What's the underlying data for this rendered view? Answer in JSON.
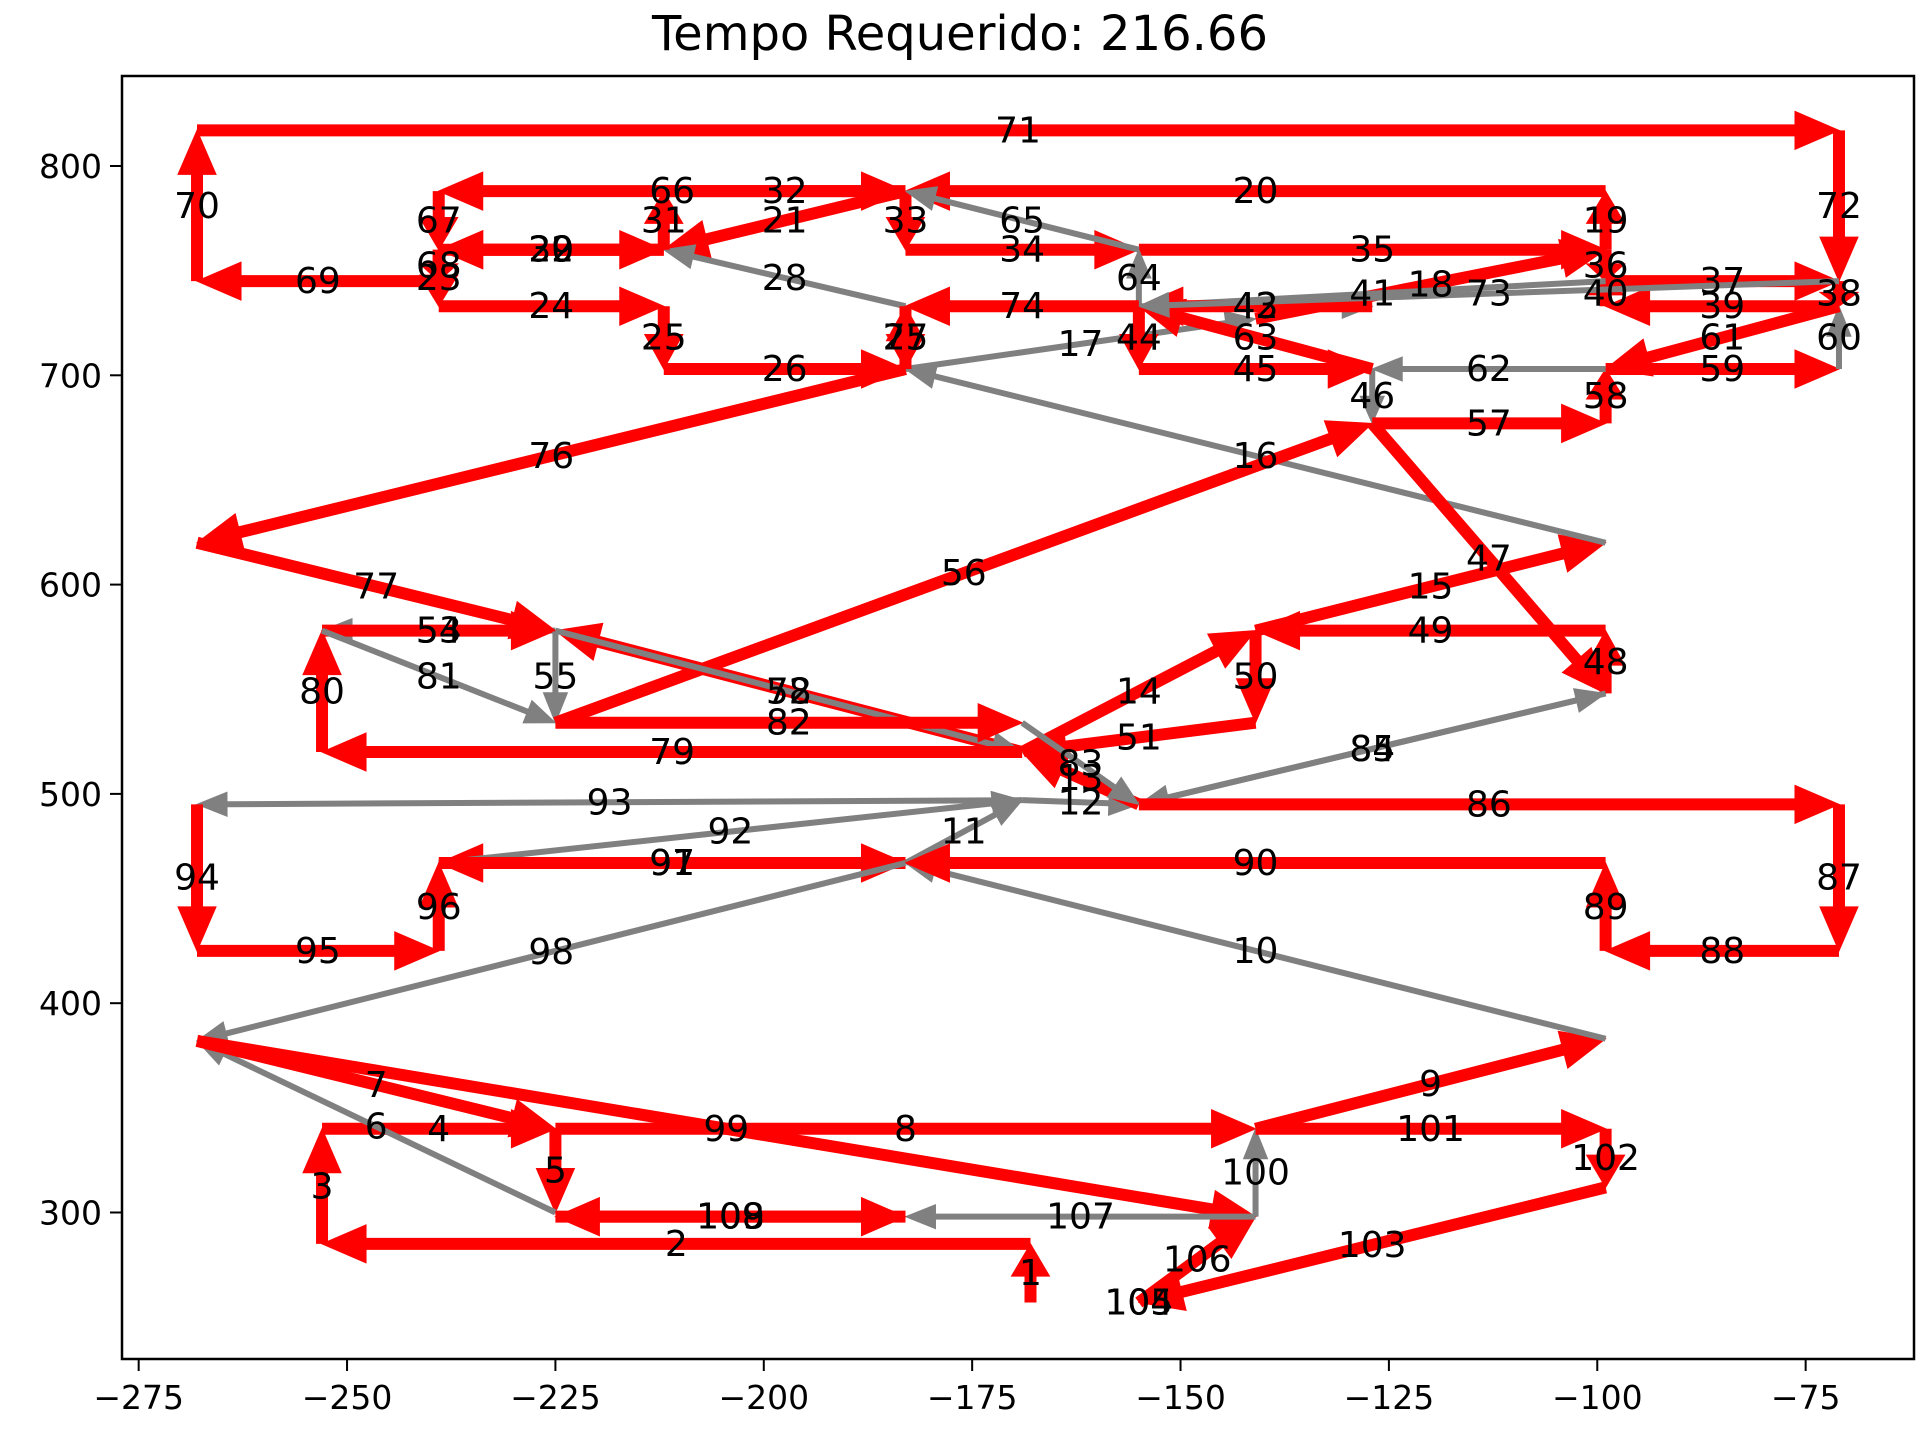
{
  "chart_data": {
    "type": "line",
    "title": "Tempo Requerido: 216.66",
    "xlabel": "",
    "ylabel": "",
    "xlim": [
      -277,
      -62
    ],
    "ylim": [
      230,
      843
    ],
    "xticks": [
      -275,
      -250,
      -225,
      -200,
      -175,
      -150,
      -125,
      -100,
      -75
    ],
    "yticks": [
      300,
      400,
      500,
      600,
      700,
      800
    ],
    "xtick_labels": [
      "−275",
      "−250",
      "−225",
      "−200",
      "−175",
      "−150",
      "−125",
      "−100",
      "−75"
    ],
    "ytick_labels": [
      "300",
      "400",
      "500",
      "600",
      "700",
      "800"
    ],
    "grid": false,
    "colors": {
      "primary": "#ff0000",
      "secondary": "#808080"
    },
    "points": [
      [
        -168,
        257
      ],
      [
        -168,
        285
      ],
      [
        -253,
        285
      ],
      [
        -253,
        340
      ],
      [
        -225,
        340
      ],
      [
        -225,
        300
      ],
      [
        -268,
        382
      ],
      [
        -225,
        340
      ],
      [
        -141,
        340
      ],
      [
        -99,
        383
      ],
      [
        -183,
        467
      ],
      [
        -169,
        497
      ],
      [
        -155,
        495
      ],
      [
        -169,
        520
      ],
      [
        -141,
        578
      ],
      [
        -99,
        620
      ],
      [
        -183,
        703
      ],
      [
        -141,
        727
      ],
      [
        -99,
        760
      ],
      [
        -99,
        788
      ],
      [
        -183,
        788
      ],
      [
        -212,
        760
      ],
      [
        -239,
        760
      ],
      [
        -239,
        733
      ],
      [
        -212,
        733
      ],
      [
        -212,
        703
      ],
      [
        -183,
        703
      ],
      [
        -183,
        733
      ],
      [
        -212,
        760
      ],
      [
        -239,
        760
      ],
      [
        -212,
        760
      ],
      [
        -212,
        788
      ],
      [
        -183,
        788
      ],
      [
        -183,
        760
      ],
      [
        -155,
        760
      ],
      [
        -99,
        760
      ],
      [
        -99,
        745
      ],
      [
        -71,
        745
      ],
      [
        -71,
        733
      ],
      [
        -99,
        733
      ],
      [
        -99,
        745
      ],
      [
        -155,
        733
      ],
      [
        -127,
        733
      ],
      [
        -155,
        733
      ],
      [
        -155,
        703
      ],
      [
        -127,
        703
      ],
      [
        -127,
        677
      ],
      [
        -99,
        548
      ],
      [
        -99,
        578
      ],
      [
        -141,
        578
      ],
      [
        -141,
        534
      ],
      [
        -169,
        520
      ],
      [
        -225,
        578
      ],
      [
        -253,
        578
      ],
      [
        -225,
        578
      ],
      [
        -225,
        534
      ],
      [
        -127,
        677
      ],
      [
        -99,
        677
      ],
      [
        -99,
        703
      ],
      [
        -71,
        703
      ],
      [
        -71,
        733
      ],
      [
        -99,
        703
      ],
      [
        -127,
        703
      ],
      [
        -155,
        733
      ],
      [
        -155,
        760
      ],
      [
        -183,
        788
      ],
      [
        -239,
        788
      ],
      [
        -239,
        760
      ],
      [
        -239,
        745
      ],
      [
        -268,
        745
      ],
      [
        -268,
        817
      ],
      [
        -71,
        817
      ],
      [
        -71,
        745
      ],
      [
        -155,
        733
      ],
      [
        -183,
        733
      ],
      [
        -183,
        703
      ],
      [
        -268,
        620
      ],
      [
        -225,
        578
      ],
      [
        -169,
        520
      ],
      [
        -253,
        520
      ],
      [
        -253,
        578
      ],
      [
        -225,
        534
      ],
      [
        -169,
        534
      ],
      [
        -155,
        495
      ],
      [
        -99,
        548
      ],
      [
        -155,
        495
      ],
      [
        -71,
        495
      ],
      [
        -71,
        425
      ],
      [
        -99,
        425
      ],
      [
        -99,
        467
      ],
      [
        -183,
        467
      ],
      [
        -239,
        467
      ],
      [
        -169,
        497
      ],
      [
        -268,
        495
      ],
      [
        -268,
        425
      ],
      [
        -239,
        425
      ],
      [
        -239,
        467
      ],
      [
        -183,
        467
      ],
      [
        -268,
        382
      ],
      [
        -141,
        298
      ],
      [
        -141,
        340
      ],
      [
        -99,
        340
      ],
      [
        -99,
        312
      ],
      [
        -155,
        257
      ],
      [
        -155,
        257
      ],
      [
        -155,
        257
      ],
      [
        -141,
        298
      ],
      [
        -183,
        298
      ],
      [
        -225,
        298
      ],
      [
        -183,
        298
      ]
    ],
    "segments": [
      {
        "label": "1",
        "color": "red"
      },
      {
        "label": "2",
        "color": "red"
      },
      {
        "label": "3",
        "color": "red"
      },
      {
        "label": "4",
        "color": "red"
      },
      {
        "label": "5",
        "color": "red"
      },
      {
        "label": "6",
        "color": "gray"
      },
      {
        "label": "7",
        "color": "red"
      },
      {
        "label": "8",
        "color": "red"
      },
      {
        "label": "9",
        "color": "red"
      },
      {
        "label": "10",
        "color": "gray"
      },
      {
        "label": "11",
        "color": "gray"
      },
      {
        "label": "12",
        "color": "gray"
      },
      {
        "label": "13",
        "color": "red"
      },
      {
        "label": "14",
        "color": "red"
      },
      {
        "label": "15",
        "color": "red"
      },
      {
        "label": "16",
        "color": "gray"
      },
      {
        "label": "17",
        "color": "gray"
      },
      {
        "label": "18",
        "color": "red"
      },
      {
        "label": "19",
        "color": "red"
      },
      {
        "label": "20",
        "color": "red"
      },
      {
        "label": "21",
        "color": "red"
      },
      {
        "label": "22",
        "color": "red"
      },
      {
        "label": "23",
        "color": "red"
      },
      {
        "label": "24",
        "color": "red"
      },
      {
        "label": "25",
        "color": "red"
      },
      {
        "label": "26",
        "color": "red"
      },
      {
        "label": "27",
        "color": "red"
      },
      {
        "label": "28",
        "color": "gray"
      },
      {
        "label": "29",
        "color": "red"
      },
      {
        "label": "30",
        "color": "red"
      },
      {
        "label": "31",
        "color": "red"
      },
      {
        "label": "32",
        "color": "red"
      },
      {
        "label": "33",
        "color": "red"
      },
      {
        "label": "34",
        "color": "red"
      },
      {
        "label": "35",
        "color": "red"
      },
      {
        "label": "36",
        "color": "red"
      },
      {
        "label": "37",
        "color": "red"
      },
      {
        "label": "38",
        "color": "red"
      },
      {
        "label": "39",
        "color": "red"
      },
      {
        "label": "40",
        "color": "red"
      },
      {
        "label": "41",
        "color": "gray"
      },
      {
        "label": "42",
        "color": "gray"
      },
      {
        "label": "43",
        "color": "red"
      },
      {
        "label": "44",
        "color": "red"
      },
      {
        "label": "45",
        "color": "red"
      },
      {
        "label": "46",
        "color": "gray"
      },
      {
        "label": "47",
        "color": "red"
      },
      {
        "label": "48",
        "color": "red"
      },
      {
        "label": "49",
        "color": "red"
      },
      {
        "label": "50",
        "color": "red"
      },
      {
        "label": "51",
        "color": "red"
      },
      {
        "label": "52",
        "color": "red"
      },
      {
        "label": "53",
        "color": "gray"
      },
      {
        "label": "54",
        "color": "red"
      },
      {
        "label": "55",
        "color": "gray"
      },
      {
        "label": "56",
        "color": "red"
      },
      {
        "label": "57",
        "color": "red"
      },
      {
        "label": "58",
        "color": "red"
      },
      {
        "label": "59",
        "color": "red"
      },
      {
        "label": "60",
        "color": "gray"
      },
      {
        "label": "61",
        "color": "red"
      },
      {
        "label": "62",
        "color": "gray"
      },
      {
        "label": "63",
        "color": "red"
      },
      {
        "label": "64",
        "color": "gray"
      },
      {
        "label": "65",
        "color": "gray"
      },
      {
        "label": "66",
        "color": "red"
      },
      {
        "label": "67",
        "color": "red"
      },
      {
        "label": "68",
        "color": "red"
      },
      {
        "label": "69",
        "color": "red"
      },
      {
        "label": "70",
        "color": "red"
      },
      {
        "label": "71",
        "color": "red"
      },
      {
        "label": "72",
        "color": "red"
      },
      {
        "label": "73",
        "color": "gray"
      },
      {
        "label": "74",
        "color": "red"
      },
      {
        "label": "75",
        "color": "red"
      },
      {
        "label": "76",
        "color": "red"
      },
      {
        "label": "77",
        "color": "red"
      },
      {
        "label": "78",
        "color": "gray"
      },
      {
        "label": "79",
        "color": "red"
      },
      {
        "label": "80",
        "color": "red"
      },
      {
        "label": "81",
        "color": "gray"
      },
      {
        "label": "82",
        "color": "red"
      },
      {
        "label": "83",
        "color": "gray"
      },
      {
        "label": "84",
        "color": "gray"
      },
      {
        "label": "85",
        "color": "gray"
      },
      {
        "label": "86",
        "color": "red"
      },
      {
        "label": "87",
        "color": "red"
      },
      {
        "label": "88",
        "color": "red"
      },
      {
        "label": "89",
        "color": "red"
      },
      {
        "label": "90",
        "color": "red"
      },
      {
        "label": "91",
        "color": "red"
      },
      {
        "label": "92",
        "color": "gray"
      },
      {
        "label": "93",
        "color": "gray"
      },
      {
        "label": "94",
        "color": "red"
      },
      {
        "label": "95",
        "color": "red"
      },
      {
        "label": "96",
        "color": "red"
      },
      {
        "label": "97",
        "color": "red"
      },
      {
        "label": "98",
        "color": "gray"
      },
      {
        "label": "99",
        "color": "red"
      },
      {
        "label": "100",
        "color": "gray"
      },
      {
        "label": "101",
        "color": "red"
      },
      {
        "label": "102",
        "color": "red"
      },
      {
        "label": "103",
        "color": "red"
      },
      {
        "label": "104",
        "color": "red"
      },
      {
        "label": "105",
        "color": "red"
      },
      {
        "label": "106",
        "color": "red"
      },
      {
        "label": "107",
        "color": "gray"
      },
      {
        "label": "108",
        "color": "red"
      },
      {
        "label": "109",
        "color": "red"
      }
    ]
  }
}
